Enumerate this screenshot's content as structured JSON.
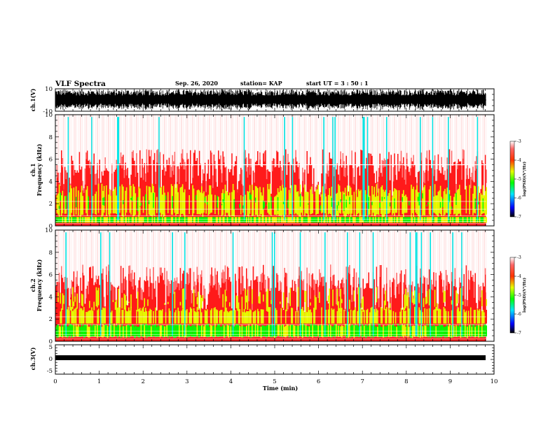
{
  "header": {
    "title": "VLF Spectra",
    "date": "Sep. 26, 2020",
    "station": "station= KAP",
    "start": "start  UT =   3  : 50 : 1"
  },
  "chart_data": [
    {
      "type": "line",
      "panel": "ch1-waveform",
      "ylabel": "ch.1(V)",
      "ylim": [
        -10,
        10
      ],
      "ytick_labels": [
        "10",
        "-10"
      ],
      "x_range_min": [
        0,
        9.82
      ],
      "trace": "dense black waveform filling most of the ±10 V range"
    },
    {
      "type": "heatmap",
      "panel": "ch1-spectrogram",
      "ylabel": "ch.1\nFrequency (kHz)",
      "ylim": [
        0,
        10
      ],
      "ytick_labels": [
        "0",
        "2",
        "4",
        "6",
        "8",
        "10"
      ],
      "x_range_min": [
        0,
        9.82
      ],
      "colorbar": {
        "label": "log(PSD)(V²/Hz)",
        "ticks": [
          "-3",
          "-4",
          "-5",
          "-6",
          "-7"
        ],
        "range": [
          -7,
          -3
        ]
      },
      "bands_khz": {
        "yellow_band": [
          0.8,
          3.2
        ],
        "green_low": [
          0.3,
          0.8
        ],
        "red_mid": [
          3.2,
          5.5
        ],
        "white_high": [
          5.5,
          10
        ]
      }
    },
    {
      "type": "heatmap",
      "panel": "ch2-spectrogram",
      "ylabel": "ch.2\nFrequency (kHz)",
      "ylim": [
        0,
        10
      ],
      "ytick_labels": [
        "0",
        "2",
        "4",
        "6",
        "8",
        "10"
      ],
      "x_range_min": [
        0,
        9.82
      ],
      "colorbar": {
        "label": "log(PSD)(V²/Hz)",
        "ticks": [
          "-3",
          "-4",
          "-5",
          "-6",
          "-7"
        ],
        "range": [
          -7,
          -3
        ]
      },
      "bands_khz": {
        "green_band": [
          0.3,
          1.6
        ],
        "yellow_band": [
          1.6,
          2.6
        ],
        "red_mid": [
          2.6,
          5.5
        ],
        "white_high": [
          5.5,
          10
        ]
      }
    },
    {
      "type": "line",
      "panel": "ch3-waveform",
      "ylabel": "ch.3(V)",
      "ylim": [
        -5,
        5
      ],
      "ytick_labels": [
        "5",
        "0",
        "-5"
      ],
      "x_range_min": [
        0,
        9.82
      ],
      "trace": "flat black band centered near -1 V"
    }
  ],
  "xaxis": {
    "label": "Time (min)",
    "range": [
      0,
      10
    ],
    "tick_labels": [
      "0",
      "1",
      "2",
      "3",
      "4",
      "5",
      "6",
      "7",
      "8",
      "9",
      "10"
    ]
  },
  "colors": {
    "white": "#ffffff",
    "red": "#ff1a1a",
    "yellow": "#e6ff00",
    "green": "#00ff00",
    "cyan": "#00e6e6",
    "black": "#000000"
  }
}
